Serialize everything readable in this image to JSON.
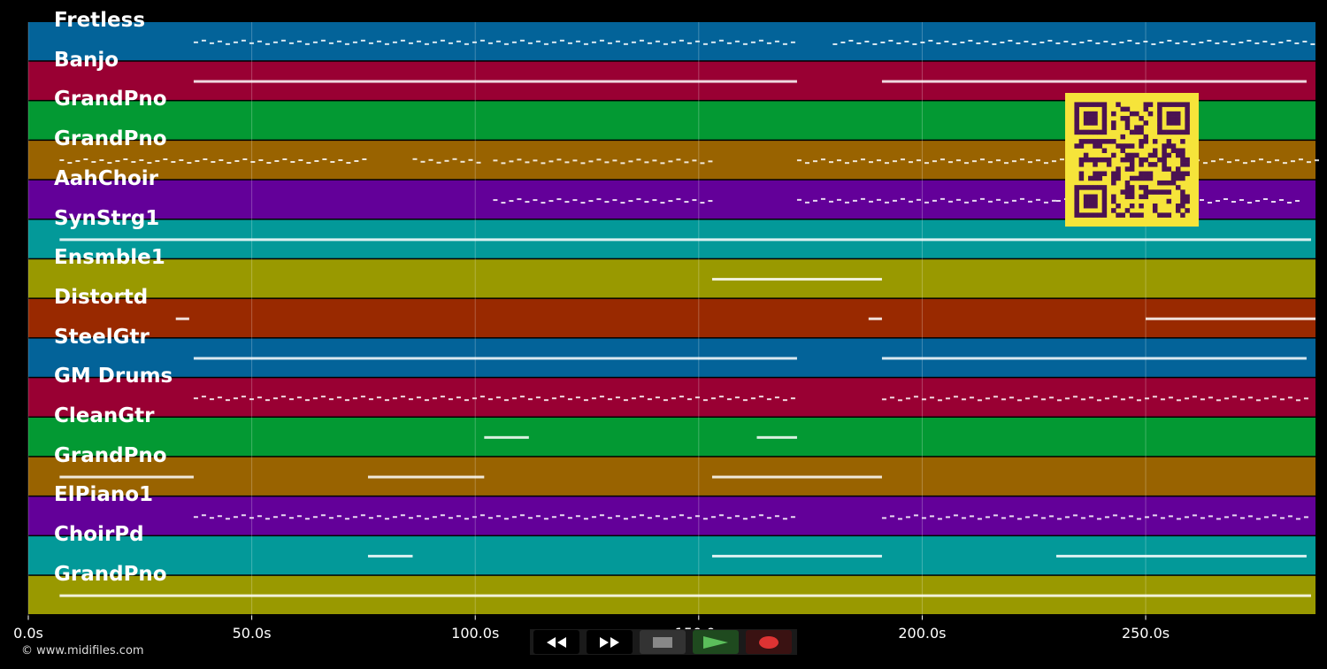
{
  "tracks": [
    {
      "name": "Fretless",
      "color": "#036399"
    },
    {
      "name": "Banjo",
      "color": "#990033"
    },
    {
      "name": "GrandPno",
      "color": "#039933"
    },
    {
      "name": "GrandPno",
      "color": "#996300"
    },
    {
      "name": "AahChoir",
      "color": "#630099"
    },
    {
      "name": "SynStrg1",
      "color": "#039999"
    },
    {
      "name": "Ensmble1",
      "color": "#999900"
    },
    {
      "name": "Distortd",
      "color": "#992900"
    },
    {
      "name": "SteelGtr",
      "color": "#036399"
    },
    {
      "name": "GM Drums",
      "color": "#990033"
    },
    {
      "name": "CleanGtr",
      "color": "#039933"
    },
    {
      "name": "GrandPno",
      "color": "#996300"
    },
    {
      "name": "ElPiano1",
      "color": "#630099"
    },
    {
      "name": "ChoirPd",
      "color": "#039999"
    },
    {
      "name": "GrandPno",
      "color": "#999900"
    }
  ],
  "time_axis": {
    "ticks": [
      "0.0s",
      "50.0s",
      "100.0s",
      "150.0s",
      "200.0s",
      "250.0s"
    ],
    "tick_values": [
      0,
      50,
      100,
      150,
      200,
      250
    ],
    "duration": 288
  },
  "copyright": "© www.midifiles.com",
  "transport": {
    "buttons": [
      {
        "name": "rewind-button",
        "icon": "rewind-icon"
      },
      {
        "name": "fast-forward-button",
        "icon": "fast-forward-icon"
      },
      {
        "name": "stop-button",
        "icon": "stop-icon"
      },
      {
        "name": "play-button",
        "icon": "play-icon"
      },
      {
        "name": "record-button",
        "icon": "record-icon"
      }
    ]
  },
  "qr_code": {
    "icon": "qr-code-icon",
    "color": "#f6e43a"
  }
}
